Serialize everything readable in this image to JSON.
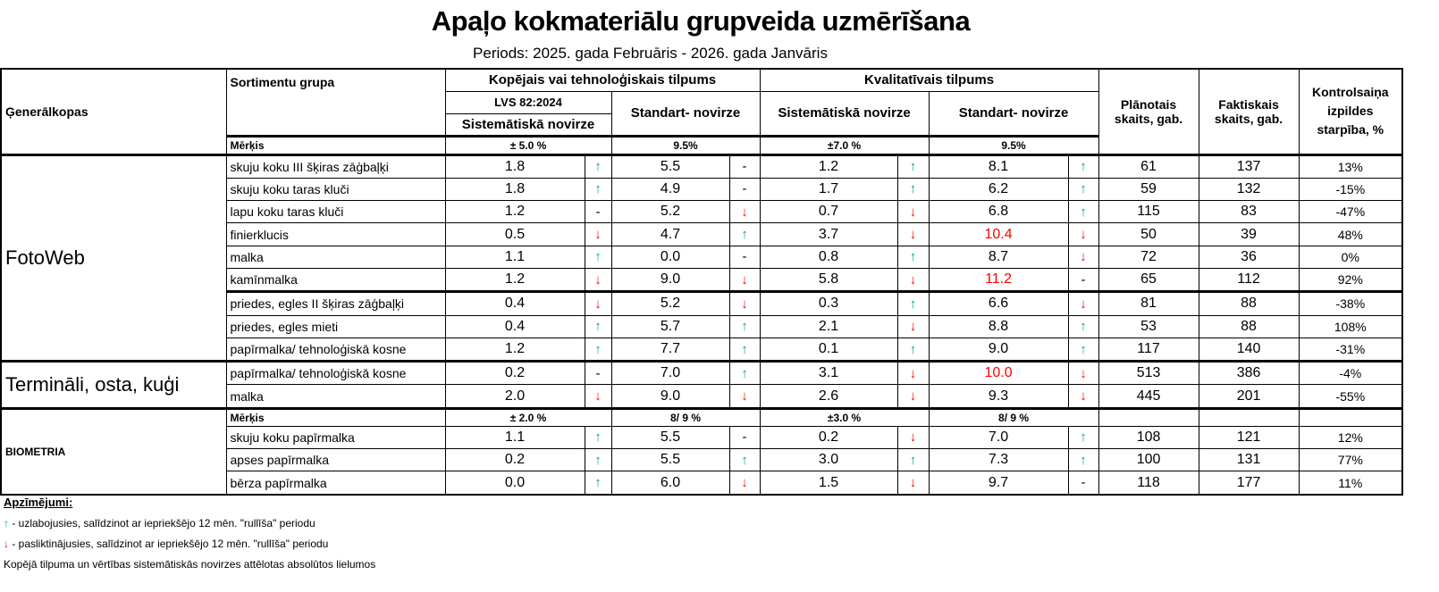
{
  "title": "Apaļo kokmateriālu grupveida uzmērīšana",
  "period": "Periods: 2025. gada Februāris - 2026. gada Janvāris",
  "header": {
    "generalkopas": "Ģenerālkopas",
    "sortimentu_grupa": "Sortimentu grupa",
    "kopejais": "Kopējais vai tehnoloģiskais tilpums",
    "lvs": "LVS 82:2024",
    "sistematiska": "Sistemātiskā novirze",
    "standart": "Standart- novirze",
    "kvalitativais": "Kvalitatīvais tilpums",
    "planotais": "Plānotais skaits, gab.",
    "faktiskais": "Faktiskais skaits, gab.",
    "kontrol": "Kontrolsaiņa izpildes starpība, %",
    "merkis": "Mērķis"
  },
  "goals_1": {
    "kop_sis": "± 5.0 %",
    "kop_std": "9.5%",
    "kv_sis": "±7.0 %",
    "kv_std": "9.5%"
  },
  "goals_2": {
    "kop_sis": "± 2.0 %",
    "kop_std": "8/ 9 %",
    "kv_sis": "±3.0 %",
    "kv_std": "8/ 9 %"
  },
  "groups": [
    {
      "name": "FotoWeb",
      "rows": [
        {
          "s": "skuju koku III šķiras zāģbaļķi",
          "a": "1.8",
          "aa": "up",
          "b": "5.5",
          "ba": "-",
          "c": "1.2",
          "ca": "up",
          "d": "8.1",
          "da": "up",
          "dr": false,
          "p": "61",
          "f": "137",
          "k": "13%"
        },
        {
          "s": "skuju koku taras kluči",
          "a": "1.8",
          "aa": "up",
          "b": "4.9",
          "ba": "-",
          "c": "1.7",
          "ca": "up",
          "d": "6.2",
          "da": "up",
          "dr": false,
          "p": "59",
          "f": "132",
          "k": "-15%"
        },
        {
          "s": "lapu koku taras kluči",
          "a": "1.2",
          "aa": "-",
          "b": "5.2",
          "ba": "down",
          "c": "0.7",
          "ca": "down",
          "d": "6.8",
          "da": "up",
          "dr": false,
          "p": "115",
          "f": "83",
          "k": "-47%"
        },
        {
          "s": "finierklucis",
          "a": "0.5",
          "aa": "down",
          "b": "4.7",
          "ba": "up",
          "c": "3.7",
          "ca": "down",
          "d": "10.4",
          "da": "down",
          "dr": true,
          "p": "50",
          "f": "39",
          "k": "48%"
        },
        {
          "s": "malka",
          "a": "1.1",
          "aa": "up",
          "b": "0.0",
          "ba": "-",
          "c": "0.8",
          "ca": "up",
          "d": "8.7",
          "da": "down",
          "dr": false,
          "p": "72",
          "f": "36",
          "k": "0%"
        },
        {
          "s": "kamīnmalka",
          "a": "1.2",
          "aa": "down",
          "b": "9.0",
          "ba": "down",
          "c": "5.8",
          "ca": "down",
          "d": "11.2",
          "da": "-",
          "dr": true,
          "p": "65",
          "f": "112",
          "k": "92%"
        },
        {
          "s": "priedes, egles II šķiras zāģbaļķi",
          "a": "0.4",
          "aa": "down",
          "b": "5.2",
          "ba": "down",
          "c": "0.3",
          "ca": "up",
          "d": "6.6",
          "da": "down",
          "dr": false,
          "p": "81",
          "f": "88",
          "k": "-38%"
        },
        {
          "s": "priedes, egles mieti",
          "a": "0.4",
          "aa": "up",
          "b": "5.7",
          "ba": "up",
          "c": "2.1",
          "ca": "down",
          "d": "8.8",
          "da": "up",
          "dr": false,
          "p": "53",
          "f": "88",
          "k": "108%"
        },
        {
          "s": "papīrmalka/ tehnoloģiskā kosne",
          "a": "1.2",
          "aa": "up",
          "b": "7.7",
          "ba": "up",
          "c": "0.1",
          "ca": "up",
          "d": "9.0",
          "da": "up",
          "dr": false,
          "p": "117",
          "f": "140",
          "k": "-31%"
        }
      ]
    },
    {
      "name": "Termināli, osta, kuģi",
      "rows": [
        {
          "s": "papīrmalka/ tehnoloģiskā kosne",
          "a": "0.2",
          "aa": "-",
          "b": "7.0",
          "ba": "up",
          "c": "3.1",
          "ca": "down",
          "d": "10.0",
          "da": "down",
          "dr": true,
          "p": "513",
          "f": "386",
          "k": "-4%"
        },
        {
          "s": "malka",
          "a": "2.0",
          "aa": "down",
          "b": "9.0",
          "ba": "down",
          "c": "2.6",
          "ca": "down",
          "d": "9.3",
          "da": "down",
          "dr": false,
          "p": "445",
          "f": "201",
          "k": "-55%"
        }
      ]
    },
    {
      "name": "BIOMETRIA",
      "goal": "goals_2",
      "rows": [
        {
          "s": "skuju koku papīrmalka",
          "a": "1.1",
          "aa": "up",
          "b": "5.5",
          "ba": "-",
          "c": "0.2",
          "ca": "down",
          "d": "7.0",
          "da": "up",
          "dr": false,
          "p": "108",
          "f": "121",
          "k": "12%"
        },
        {
          "s": "apses papīrmalka",
          "a": "0.2",
          "aa": "up",
          "b": "5.5",
          "ba": "up",
          "c": "3.0",
          "ca": "up",
          "d": "7.3",
          "da": "up",
          "dr": false,
          "p": "100",
          "f": "131",
          "k": "77%"
        },
        {
          "s": "bērza papīrmalka",
          "a": "0.0",
          "aa": "up",
          "b": "6.0",
          "ba": "down",
          "c": "1.5",
          "ca": "down",
          "d": "9.7",
          "da": "-",
          "dr": false,
          "p": "118",
          "f": "177",
          "k": "11%"
        }
      ]
    }
  ],
  "arrows": {
    "up": "↑",
    "down": "↓",
    "-": "-"
  },
  "colors": {
    "up": "#00b050",
    "down": "#ff0000"
  },
  "legend": {
    "title": "Apzīmējumi:",
    "up_text": " - uzlabojusies, salīdzinot ar iepriekšējo 12 mēn. \"rullīša\" periodu",
    "down_text": " - pasliktinājusies, salīdzinot ar iepriekšējo 12 mēn. \"rullīša\" periodu",
    "note": "Kopējā tilpuma un vērtības sistemātiskās novirzes attēlotas absolūtos lielumos"
  }
}
